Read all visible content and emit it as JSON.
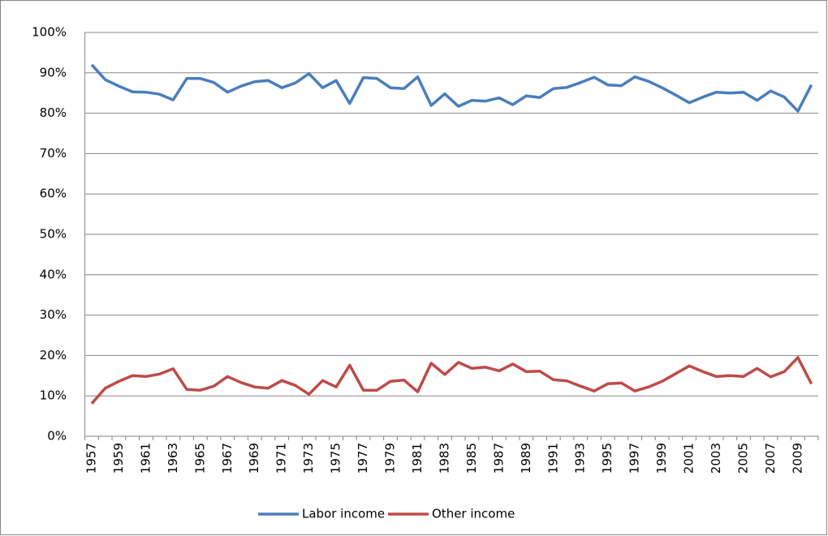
{
  "chart_data": {
    "type": "line",
    "categories": [
      "1957",
      null,
      "1959",
      null,
      "1961",
      null,
      "1963",
      null,
      "1965",
      null,
      "1967",
      null,
      "1969",
      null,
      "1971",
      null,
      "1973",
      null,
      "1975",
      null,
      "1977",
      null,
      "1979",
      null,
      "1981",
      null,
      "1983",
      null,
      "1985",
      null,
      "1987",
      null,
      "1989",
      null,
      "1991",
      null,
      "1993",
      null,
      "1995",
      null,
      "1997",
      null,
      "1999",
      null,
      "2001",
      null,
      "2003",
      null,
      "2005",
      null,
      "2007",
      null,
      "2009",
      null
    ],
    "series": [
      {
        "name": "Labor income",
        "color": "#4a7ebb",
        "values": [
          92,
          88.3,
          86.7,
          85.3,
          85.2,
          84.7,
          83.3,
          88.6,
          88.6,
          87.6,
          85.2,
          86.7,
          87.8,
          88.1,
          86.3,
          87.5,
          89.8,
          86.3,
          88.1,
          82.4,
          88.8,
          88.6,
          86.3,
          86.1,
          89,
          81.9,
          84.8,
          81.7,
          83.2,
          83,
          83.8,
          82.1,
          84.3,
          83.9,
          86.1,
          86.4,
          87.6,
          88.9,
          87,
          86.8,
          89,
          87.9,
          86.3,
          84.5,
          82.6,
          84,
          85.2,
          85,
          85.2,
          83.2,
          85.5,
          84,
          80.5,
          87
        ]
      },
      {
        "name": "Other income",
        "color": "#be4b48",
        "values": [
          8.1,
          11.9,
          13.6,
          15,
          14.8,
          15.4,
          16.7,
          11.6,
          11.4,
          12.4,
          14.8,
          13.3,
          12.2,
          11.9,
          13.8,
          12.6,
          10.4,
          13.8,
          12.2,
          17.6,
          11.4,
          11.4,
          13.6,
          13.9,
          11,
          18.1,
          15.3,
          18.3,
          16.8,
          17.1,
          16.2,
          17.9,
          16,
          16.1,
          14,
          13.7,
          12.4,
          11.2,
          13,
          13.2,
          11.2,
          12.2,
          13.6,
          15.5,
          17.4,
          16,
          14.8,
          15,
          14.8,
          16.8,
          14.7,
          16,
          19.5,
          13
        ]
      }
    ],
    "ylim": [
      0,
      100
    ],
    "yticks": [
      {
        "value": 0,
        "label": "0%"
      },
      {
        "value": 10,
        "label": "10%"
      },
      {
        "value": 20,
        "label": "20%"
      },
      {
        "value": 30,
        "label": "30%"
      },
      {
        "value": 40,
        "label": "40%"
      },
      {
        "value": 50,
        "label": "50%"
      },
      {
        "value": 60,
        "label": "60%"
      },
      {
        "value": 70,
        "label": "70%"
      },
      {
        "value": 80,
        "label": "80%"
      },
      {
        "value": 90,
        "label": "90%"
      },
      {
        "value": 100,
        "label": "100%"
      }
    ],
    "grid": true,
    "legend": "bottom"
  }
}
